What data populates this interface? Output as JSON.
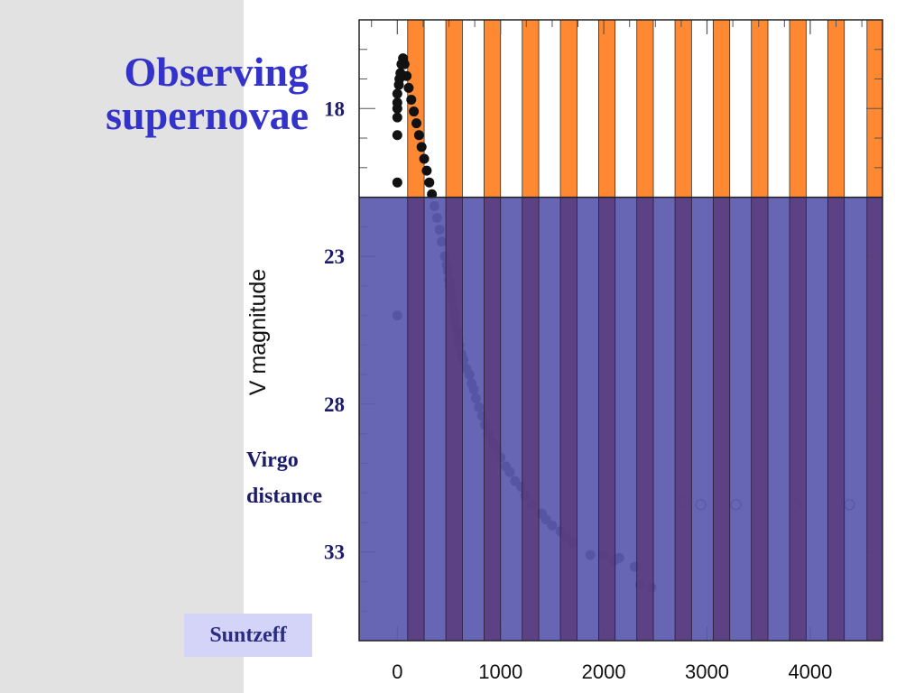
{
  "slide": {
    "title_line1": "Observing",
    "title_line2": "supernovae",
    "credit": "Suntzeff"
  },
  "colors": {
    "background": "#ffffff",
    "side_panel": "#e2e2e2",
    "title": "#3333cc",
    "overlay_blue": "#5a5aae",
    "stripe_orange": "#ff8833",
    "stripe_purple": "#5a3a78",
    "points": "#111111",
    "credit_box": "#d4d4f8"
  },
  "chart_data": {
    "type": "scatter",
    "title": "",
    "xlabel": "",
    "ylabel": "V magnitude",
    "xlim": [
      -370,
      4700
    ],
    "ylim": [
      15.0,
      36.0
    ],
    "y_inverted": true,
    "x_ticks": [
      0,
      1000,
      2000,
      3000,
      4000
    ],
    "x_tick_labels": [
      "0",
      "1000",
      "2000",
      "3000",
      "4000"
    ],
    "y_ticks": [
      18,
      23,
      28,
      33
    ],
    "y_tick_labels": [
      "18",
      "23",
      "28",
      "33"
    ],
    "annotations": [
      {
        "text_line1": "Virgo",
        "text_line2": "distance",
        "y": 31.3
      }
    ],
    "overlay": {
      "description_value_boundary_magnitude": 21.0
    },
    "stripes": {
      "x_starts": [
        100,
        470,
        840,
        1210,
        1580,
        1950,
        2320,
        2690,
        3060,
        3430,
        3800,
        4170,
        4550
      ],
      "width": 160
    },
    "series": [
      {
        "marker": "filled",
        "points": [
          [
            0,
            17.5
          ],
          [
            0,
            17.8
          ],
          [
            0,
            18.0
          ],
          [
            0,
            18.3
          ],
          [
            0,
            18.9
          ],
          [
            0,
            20.5
          ],
          [
            0,
            25.0
          ],
          [
            15,
            17.2
          ],
          [
            20,
            17.0
          ],
          [
            30,
            16.8
          ],
          [
            40,
            16.5
          ],
          [
            55,
            16.3
          ],
          [
            70,
            16.5
          ],
          [
            90,
            16.9
          ],
          [
            110,
            17.3
          ],
          [
            135,
            17.7
          ],
          [
            160,
            18.1
          ],
          [
            185,
            18.5
          ],
          [
            210,
            18.9
          ],
          [
            235,
            19.3
          ],
          [
            260,
            19.7
          ],
          [
            285,
            20.1
          ],
          [
            310,
            20.5
          ],
          [
            335,
            20.9
          ],
          [
            360,
            21.3
          ],
          [
            385,
            21.7
          ],
          [
            410,
            22.1
          ],
          [
            430,
            22.5
          ],
          [
            460,
            23.0
          ],
          [
            480,
            23.3
          ],
          [
            490,
            23.5
          ],
          [
            500,
            23.8
          ],
          [
            510,
            24.0
          ],
          [
            520,
            24.3
          ],
          [
            530,
            24.5
          ],
          [
            545,
            24.8
          ],
          [
            555,
            25.0
          ],
          [
            565,
            25.2
          ],
          [
            580,
            25.5
          ],
          [
            590,
            25.8
          ],
          [
            600,
            26.0
          ],
          [
            620,
            26.3
          ],
          [
            640,
            26.5
          ],
          [
            670,
            26.8
          ],
          [
            700,
            27.0
          ],
          [
            720,
            27.3
          ],
          [
            740,
            27.5
          ],
          [
            760,
            27.8
          ],
          [
            790,
            28.1
          ],
          [
            820,
            28.4
          ],
          [
            850,
            28.7
          ],
          [
            880,
            29.0
          ],
          [
            920,
            29.3
          ],
          [
            960,
            29.5
          ],
          [
            1000,
            29.8
          ],
          [
            1050,
            30.1
          ],
          [
            1090,
            30.3
          ],
          [
            1140,
            30.6
          ],
          [
            1200,
            30.8
          ],
          [
            1240,
            31.1
          ],
          [
            1300,
            31.4
          ],
          [
            1400,
            31.7
          ],
          [
            1440,
            31.9
          ],
          [
            1500,
            32.1
          ],
          [
            1580,
            32.3
          ],
          [
            1640,
            32.5
          ],
          [
            1700,
            32.7
          ],
          [
            1870,
            33.1
          ],
          [
            2000,
            33.1
          ],
          [
            2100,
            33.3
          ],
          [
            2150,
            33.2
          ],
          [
            2300,
            33.5
          ],
          [
            2350,
            34.1
          ],
          [
            2460,
            34.2
          ]
        ]
      },
      {
        "marker": "open",
        "points": [
          [
            2780,
            31.3
          ],
          [
            2940,
            31.4
          ],
          [
            3280,
            31.4
          ],
          [
            3860,
            31.4
          ],
          [
            4380,
            31.4
          ]
        ]
      }
    ]
  }
}
